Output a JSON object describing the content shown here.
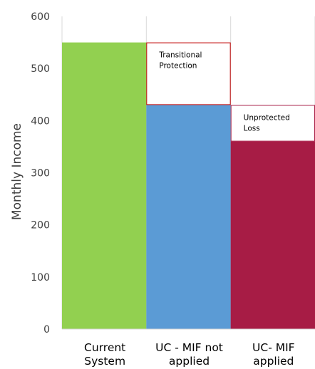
{
  "chart_data": {
    "type": "bar",
    "title": "",
    "xlabel": "",
    "ylabel": "Monthly Income",
    "ylim": [
      0,
      600
    ],
    "yticks": [
      0,
      100,
      200,
      300,
      400,
      500,
      600
    ],
    "grid": "vertical category separators",
    "legend": "none",
    "categories": [
      [
        "Current",
        "System"
      ],
      [
        "UC - MIF not",
        "applied"
      ],
      [
        "UC- MIF",
        "applied"
      ]
    ],
    "values": [
      550,
      430,
      360
    ],
    "colors": [
      "#92d050",
      "#5b9bd5",
      "#a71c45"
    ],
    "annotations": [
      {
        "label": [
          "Transitional",
          "Protection"
        ],
        "category_index": 1,
        "y_from": 430,
        "y_to": 550,
        "border_color": "#c00000",
        "fill": "#ffffff"
      },
      {
        "label": [
          "Unprotected",
          "Loss"
        ],
        "category_index": 2,
        "y_from": 360,
        "y_to": 430,
        "border_color": "#a71c45",
        "fill": "#ffffff"
      }
    ]
  }
}
